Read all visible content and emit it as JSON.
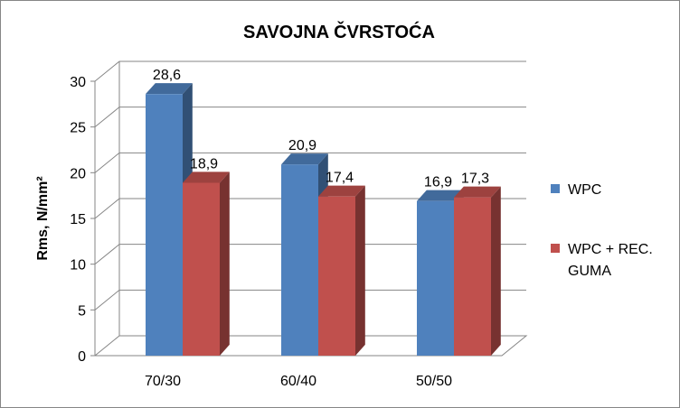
{
  "chart_data": {
    "type": "bar",
    "title": "SAVOJNA ČVRSTOĆA",
    "ylabel": "Rms, N/mm²",
    "xlabel": "",
    "categories": [
      "70/30",
      "60/40",
      "50/50"
    ],
    "ylim": [
      0,
      30
    ],
    "yticks": [
      0,
      5,
      10,
      15,
      20,
      25,
      30
    ],
    "grid": true,
    "three_d": true,
    "legend_position": "right",
    "decimal_separator": ",",
    "series": [
      {
        "name": "WPC",
        "values": [
          28.6,
          20.9,
          16.9
        ],
        "color": "#4F81BD"
      },
      {
        "name": "WPC + REC. GUMA",
        "legend_lines": [
          "WPC + REC.",
          "GUMA"
        ],
        "values": [
          18.9,
          17.4,
          17.3
        ],
        "color": "#C0504D"
      }
    ]
  }
}
